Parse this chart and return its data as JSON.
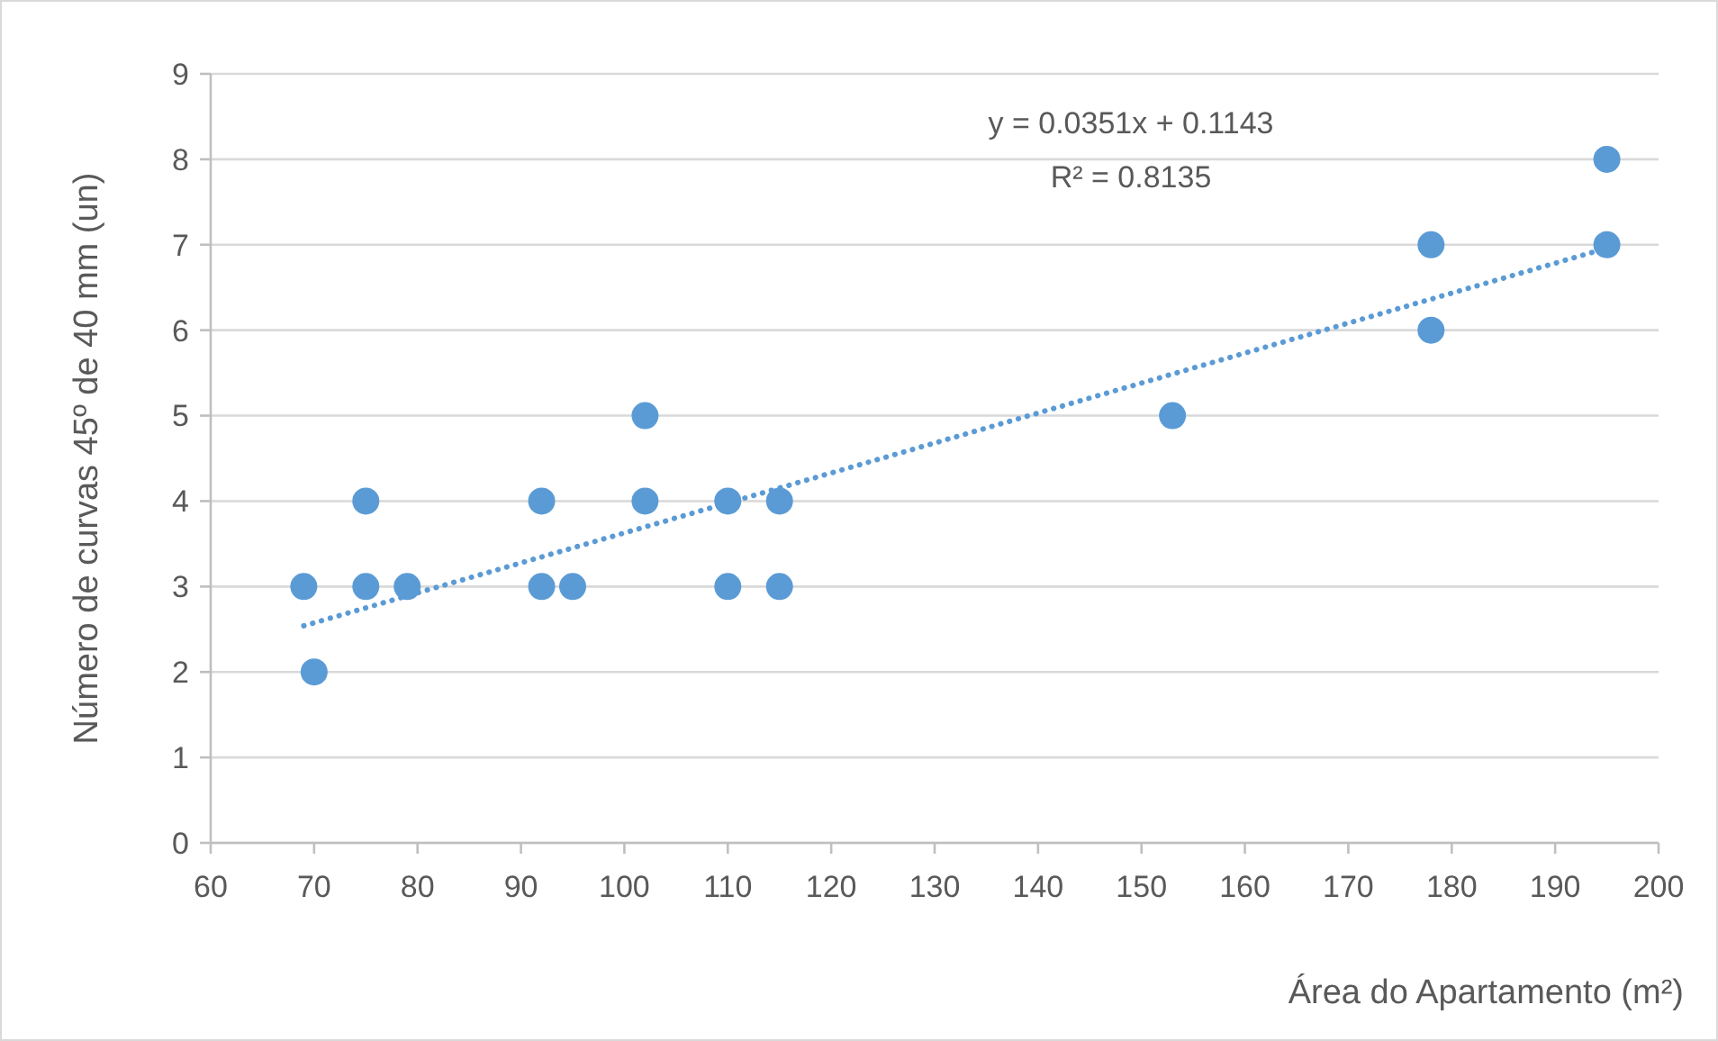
{
  "chart_data": {
    "type": "scatter",
    "xlabel": "Área do Apartamento (m²)",
    "ylabel": "Número de curvas 45º de 40 mm (un)",
    "annotations": [
      "y = 0.0351x + 0.1143",
      "R² = 0.8135"
    ],
    "xlim": [
      60,
      200
    ],
    "xticks": [
      60,
      70,
      80,
      90,
      100,
      110,
      120,
      130,
      140,
      150,
      160,
      170,
      180,
      190,
      200
    ],
    "ylim": [
      0,
      9
    ],
    "yticks": [
      0,
      1,
      2,
      3,
      4,
      5,
      6,
      7,
      8,
      9
    ],
    "grid": "y",
    "series": [
      {
        "color": "#5b9bd5",
        "marker": "circle",
        "x": [
          69,
          70,
          75,
          75,
          79,
          92,
          92,
          95,
          102,
          102,
          110,
          110,
          115,
          115,
          153,
          178,
          178,
          195,
          195
        ],
        "values": [
          3,
          2,
          4,
          3,
          3,
          4,
          3,
          3,
          5,
          4,
          4,
          3,
          4,
          3,
          5,
          7,
          6,
          8,
          7
        ]
      },
      {
        "type": "line",
        "color": "#5b9bd5",
        "marker": "none",
        "line_style": "dotted",
        "x": [
          69,
          195
        ],
        "values": [
          2.54,
          6.96
        ]
      }
    ]
  }
}
